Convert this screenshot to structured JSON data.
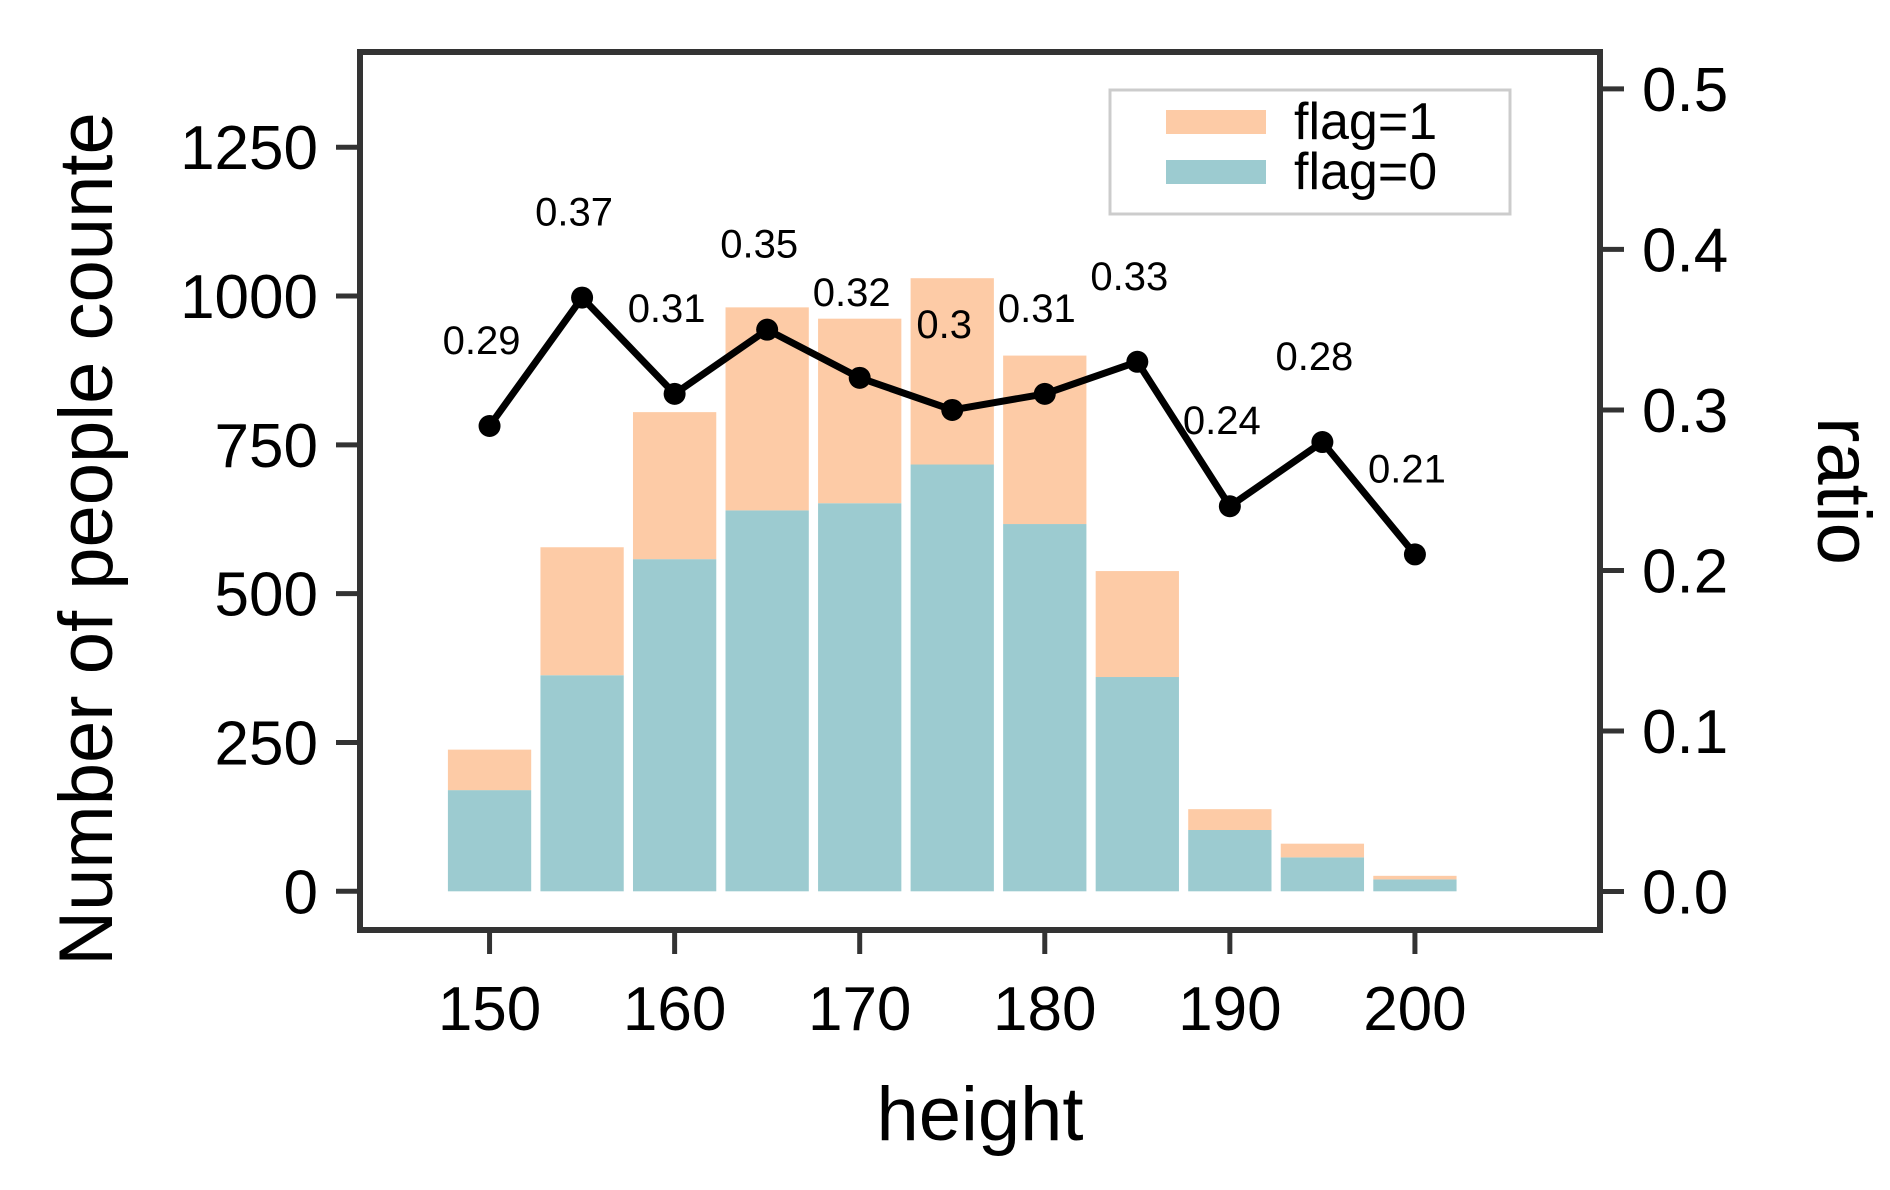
{
  "chart_data": {
    "type": "bar",
    "x": [
      150,
      155,
      160,
      165,
      170,
      175,
      180,
      185,
      190,
      195,
      200
    ],
    "series": [
      {
        "name": "flag=0",
        "type": "bar",
        "color": "#9ccbd0",
        "values": [
          170,
          363,
          558,
          640,
          652,
          717,
          617,
          360,
          103,
          57,
          20
        ]
      },
      {
        "name": "flag=1",
        "type": "bar",
        "stacked": true,
        "color": "#fdcba6",
        "values": [
          68,
          215,
          247,
          341,
          310,
          313,
          283,
          178,
          35,
          23,
          6
        ]
      },
      {
        "name": "ratio",
        "type": "line",
        "axis": "right",
        "color": "#000000",
        "values": [
          0.29,
          0.37,
          0.31,
          0.35,
          0.32,
          0.3,
          0.31,
          0.33,
          0.24,
          0.28,
          0.21
        ],
        "labels": [
          "0.29",
          "0.37",
          "0.31",
          "0.35",
          "0.32",
          "0.3",
          "0.31",
          "0.33",
          "0.24",
          "0.28",
          "0.21"
        ]
      }
    ],
    "xlabel": "height",
    "ylabel": "Number of people counte",
    "ylabel_right": "ratio",
    "xticks": [
      150,
      160,
      170,
      180,
      190,
      200
    ],
    "xlim": [
      143,
      210
    ],
    "yticks": [
      0,
      250,
      500,
      750,
      1000,
      1250
    ],
    "ylim": [
      -65,
      1410
    ],
    "yticks_right": [
      "0.0",
      "0.1",
      "0.2",
      "0.3",
      "0.4",
      "0.5"
    ],
    "ylim_right": [
      -0.024,
      0.523
    ],
    "legend": {
      "position": "top-right",
      "entries": [
        "flag=1",
        "flag=0"
      ]
    },
    "grid": false
  }
}
